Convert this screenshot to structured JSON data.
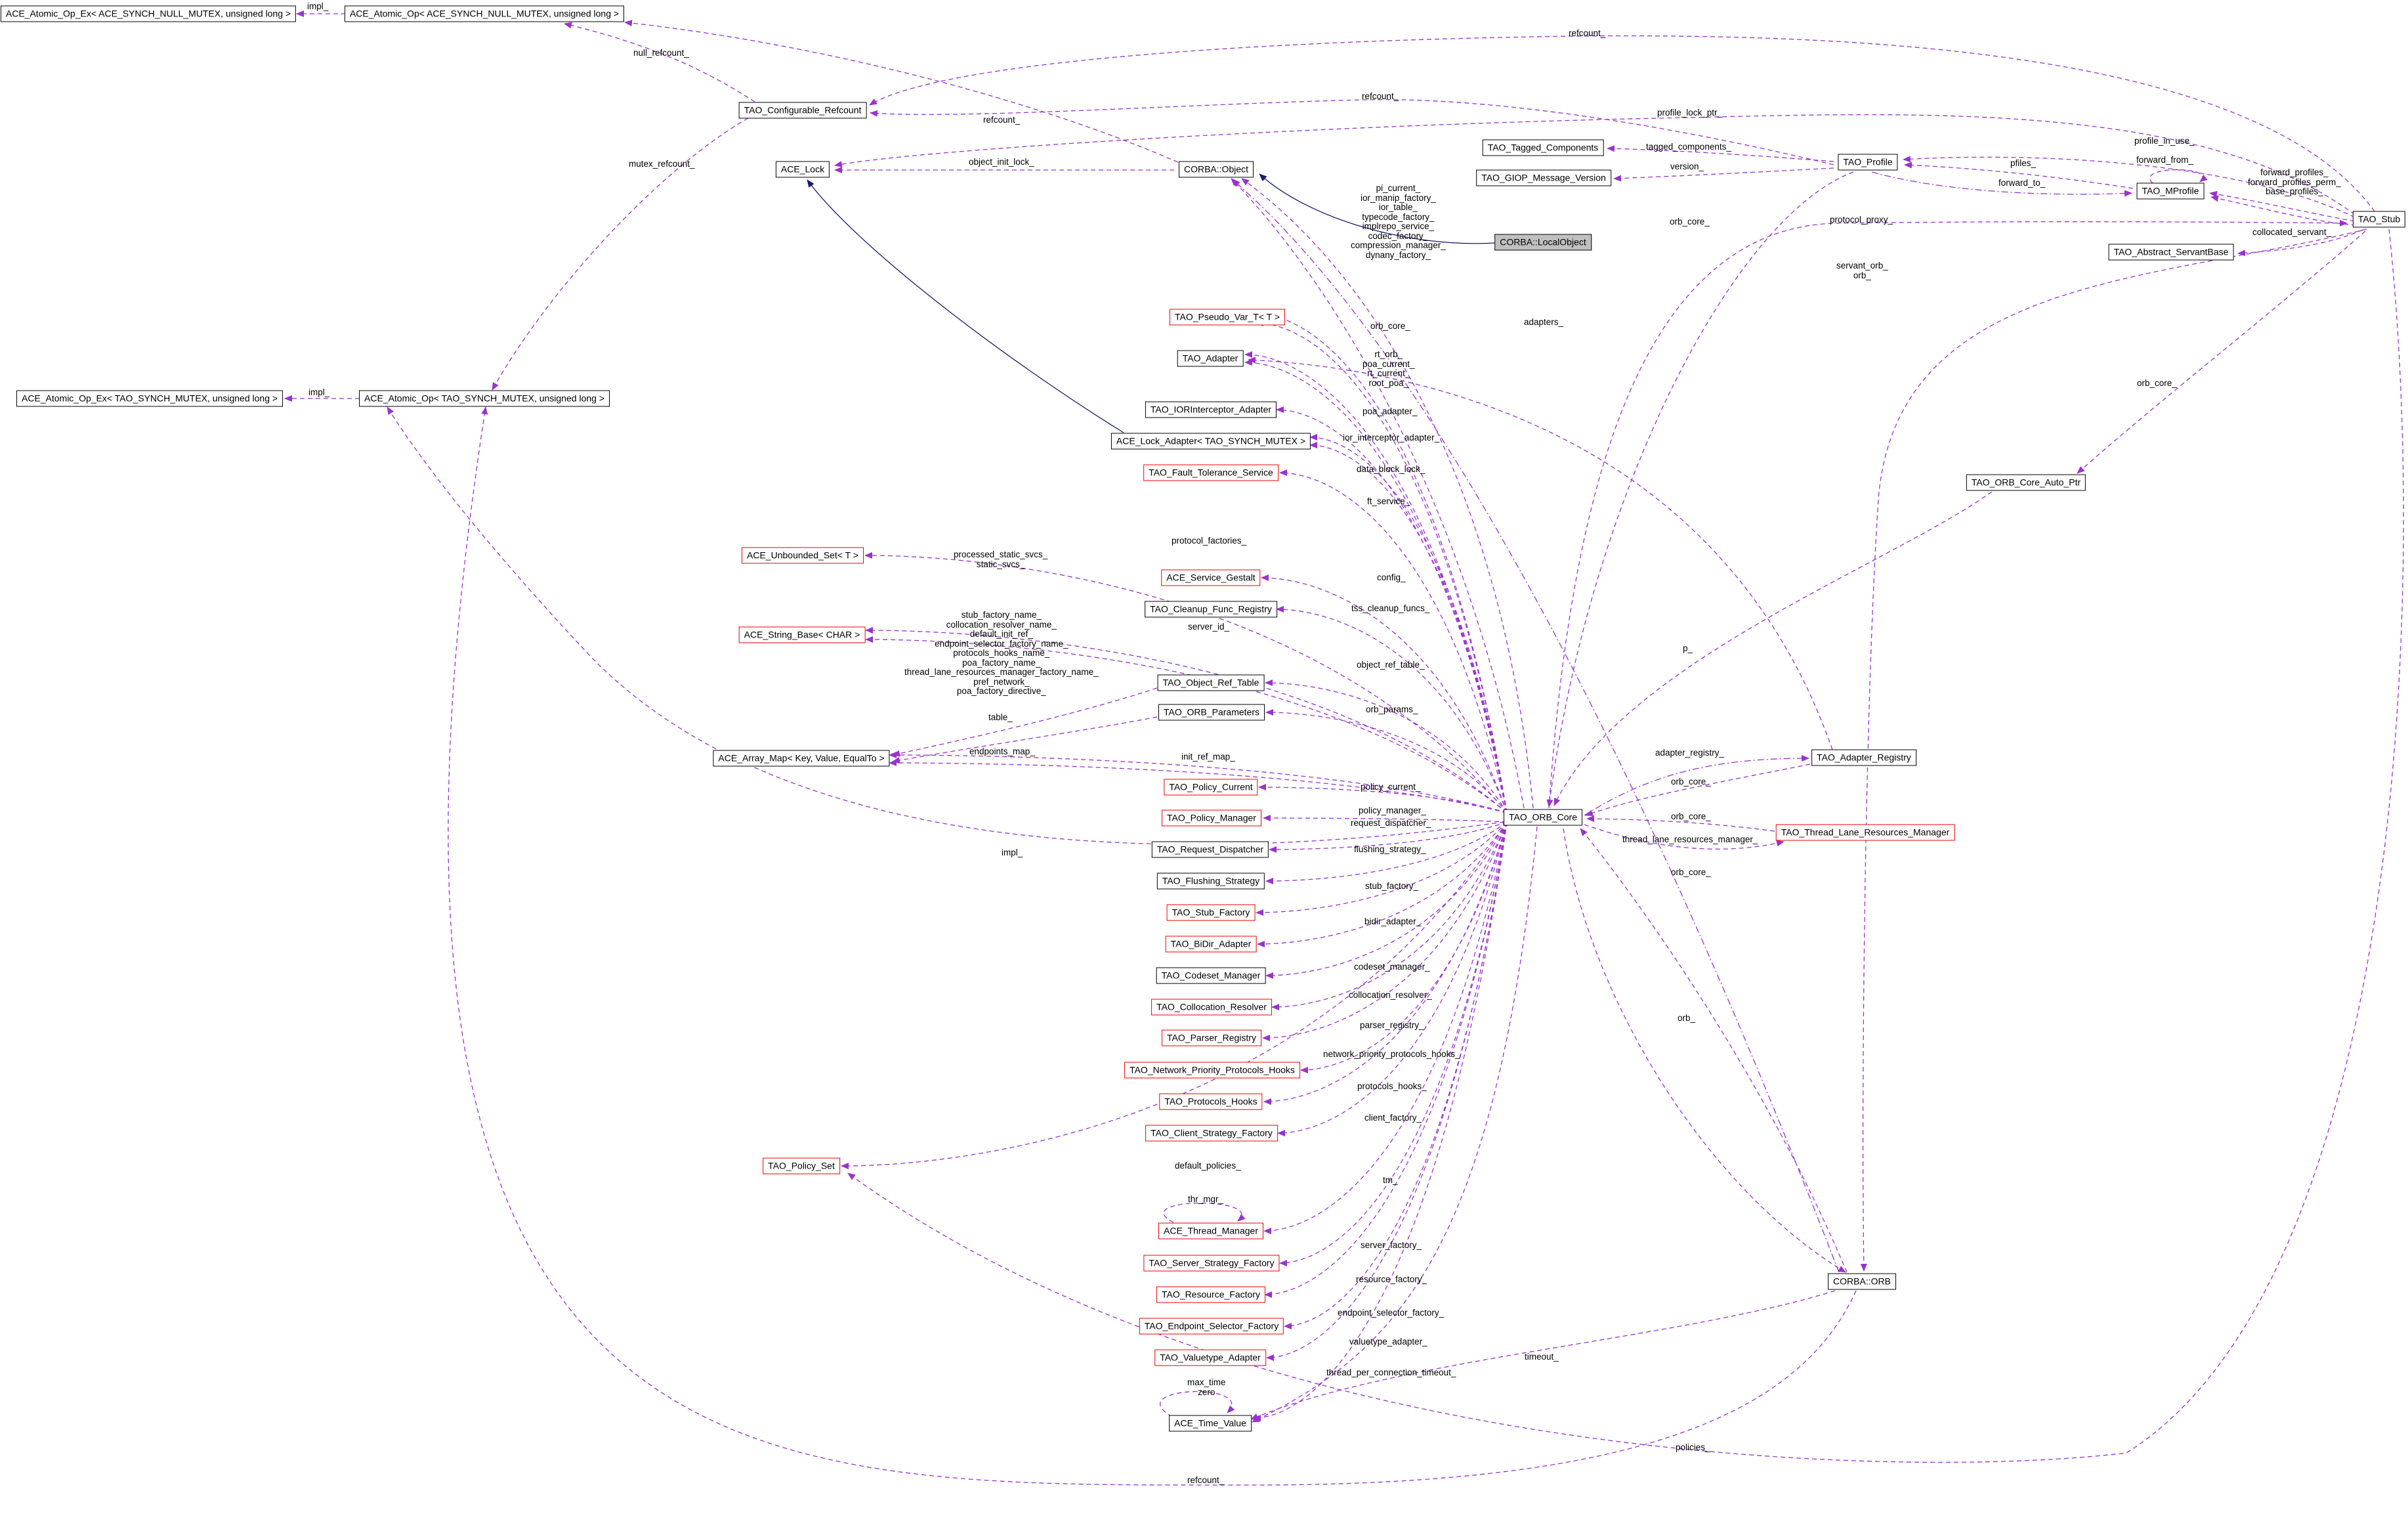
{
  "diagram": {
    "type": "doxygen-collaboration-graph",
    "subject": "TAO_Stub",
    "colors": {
      "edge": "#9a32cd",
      "inheritance_edge": "#191970",
      "node_border": "#000000",
      "external_node_border": "#ee0000",
      "filled_node_background": "#c0c0c0",
      "background": "#ffffff"
    },
    "nodes": [
      {
        "label": "ACE_Atomic_Op_Ex< ACE_SYNCH_NULL_MUTEX, unsigned long >"
      },
      {
        "label": "ACE_Atomic_Op< ACE_SYNCH_NULL_MUTEX, unsigned long >"
      },
      {
        "label": "ACE_Atomic_Op_Ex< TAO_SYNCH_MUTEX, unsigned long >"
      },
      {
        "label": "ACE_Atomic_Op< TAO_SYNCH_MUTEX, unsigned long >"
      },
      {
        "label": "TAO_Configurable_Refcount"
      },
      {
        "label": "ACE_Lock"
      },
      {
        "label": "CORBA::Object"
      },
      {
        "label": "TAO_Pseudo_Var_T< T >"
      },
      {
        "label": "TAO_Adapter"
      },
      {
        "label": "TAO_IORInterceptor_Adapter"
      },
      {
        "label": "ACE_Lock_Adapter< TAO_SYNCH_MUTEX >"
      },
      {
        "label": "TAO_Fault_Tolerance_Service"
      },
      {
        "label": "ACE_Unbounded_Set< T >"
      },
      {
        "label": "ACE_Service_Gestalt"
      },
      {
        "label": "TAO_Cleanup_Func_Registry"
      },
      {
        "label": "ACE_String_Base< CHAR >"
      },
      {
        "label": "TAO_Object_Ref_Table"
      },
      {
        "label": "TAO_ORB_Parameters"
      },
      {
        "label": "ACE_Array_Map< Key, Value, EqualTo >"
      },
      {
        "label": "TAO_Policy_Current"
      },
      {
        "label": "TAO_Policy_Manager"
      },
      {
        "label": "TAO_Request_Dispatcher"
      },
      {
        "label": "TAO_Flushing_Strategy"
      },
      {
        "label": "TAO_Stub_Factory"
      },
      {
        "label": "TAO_BiDir_Adapter"
      },
      {
        "label": "TAO_Codeset_Manager"
      },
      {
        "label": "TAO_Collocation_Resolver"
      },
      {
        "label": "TAO_Parser_Registry"
      },
      {
        "label": "TAO_Network_Priority_Protocols_Hooks"
      },
      {
        "label": "TAO_Protocols_Hooks"
      },
      {
        "label": "TAO_Client_Strategy_Factory"
      },
      {
        "label": "TAO_Policy_Set"
      },
      {
        "label": "ACE_Thread_Manager"
      },
      {
        "label": "TAO_Server_Strategy_Factory"
      },
      {
        "label": "TAO_Resource_Factory"
      },
      {
        "label": "TAO_Endpoint_Selector_Factory"
      },
      {
        "label": "TAO_Valuetype_Adapter"
      },
      {
        "label": "ACE_Time_Value"
      },
      {
        "label": "TAO_ORB_Core"
      },
      {
        "label": "TAO_Adapter_Registry"
      },
      {
        "label": "TAO_Thread_Lane_Resources_Manager"
      },
      {
        "label": "CORBA::ORB"
      },
      {
        "label": "TAO_ORB_Core_Auto_Ptr"
      },
      {
        "label": "TAO_Tagged_Components"
      },
      {
        "label": "TAO_GIOP_Message_Version"
      },
      {
        "label": "TAO_Profile"
      },
      {
        "label": "TAO_MProfile"
      },
      {
        "label": "TAO_Stub"
      },
      {
        "label": "TAO_Abstract_ServantBase"
      },
      {
        "label": "CORBA::LocalObject"
      }
    ],
    "edge_labels": [
      {
        "text": "impl_"
      },
      {
        "text": "impl_"
      },
      {
        "text": "refcount_"
      },
      {
        "text": "null_refcount_"
      },
      {
        "text": "refcount_"
      },
      {
        "text": "refcount_"
      },
      {
        "text": "profile_lock_ptr_"
      },
      {
        "text": "mutex_refcount_"
      },
      {
        "text": "object_init_lock_"
      },
      {
        "text": "tagged_components_"
      },
      {
        "text": "version_"
      },
      {
        "text": "profile_in_use_"
      },
      {
        "text": "pfiles_"
      },
      {
        "text": "forward_from_"
      },
      {
        "text": "forward_to_"
      },
      {
        "text": "forward_profiles_\nforward_profiles_perm_\nbase_profiles_"
      },
      {
        "text": "protocol_proxy_"
      },
      {
        "text": "orb_core_"
      },
      {
        "text": "collocated_servant_"
      },
      {
        "text": "servant_orb_\norb_"
      },
      {
        "text": "pi_current_\nior_manip_factory_\nior_table_\ntypecode_factory_\nimplrepo_service_\ncodec_factory_\ncompression_manager_\ndynany_factory_"
      },
      {
        "text": "orb_core_"
      },
      {
        "text": "adapters_"
      },
      {
        "text": "rt_orb_\npoa_current_\nrt_current_\nroot_poa_"
      },
      {
        "text": "poa_adapter_"
      },
      {
        "text": "ior_interceptor_adapter_"
      },
      {
        "text": "data_block_lock_"
      },
      {
        "text": "ft_service_"
      },
      {
        "text": "protocol_factories_"
      },
      {
        "text": "processed_static_svcs_\nstatic_svcs_"
      },
      {
        "text": "config_"
      },
      {
        "text": "tss_cleanup_funcs_"
      },
      {
        "text": "server_id_"
      },
      {
        "text": "stub_factory_name_\ncollocation_resolver_name_\ndefault_init_ref_\nendpoint_selector_factory_name_\nprotocols_hooks_name_\npoa_factory_name_\nthread_lane_resources_manager_factory_name_\npref_network_\npoa_factory_directive_"
      },
      {
        "text": "object_ref_table_"
      },
      {
        "text": "table_"
      },
      {
        "text": "orb_params_"
      },
      {
        "text": "endpoints_map_"
      },
      {
        "text": "init_ref_map_"
      },
      {
        "text": "policy_current_"
      },
      {
        "text": "policy_manager_"
      },
      {
        "text": "request_dispatcher_"
      },
      {
        "text": "flushing_strategy_"
      },
      {
        "text": "stub_factory_"
      },
      {
        "text": "bidir_adapter_"
      },
      {
        "text": "codeset_manager_"
      },
      {
        "text": "collocation_resolver_"
      },
      {
        "text": "parser_registry_"
      },
      {
        "text": "network_priority_protocols_hooks_"
      },
      {
        "text": "protocols_hooks_"
      },
      {
        "text": "client_factory_"
      },
      {
        "text": "default_policies_"
      },
      {
        "text": "tm_"
      },
      {
        "text": "thr_mgr_"
      },
      {
        "text": "server_factory_"
      },
      {
        "text": "resource_factory_"
      },
      {
        "text": "endpoint_selector_factory_"
      },
      {
        "text": "valuetype_adapter_"
      },
      {
        "text": "thread_per_connection_timeout_"
      },
      {
        "text": "timeout_"
      },
      {
        "text": "max_time\nzero"
      },
      {
        "text": "policies_"
      },
      {
        "text": "refcount_"
      },
      {
        "text": "adapter_registry_"
      },
      {
        "text": "orb_core_"
      },
      {
        "text": "orb_core_"
      },
      {
        "text": "thread_lane_resources_manager_"
      },
      {
        "text": "orb_core_"
      },
      {
        "text": "p_"
      },
      {
        "text": "orb_core_"
      },
      {
        "text": "orb_"
      },
      {
        "text": "impl_"
      }
    ]
  }
}
